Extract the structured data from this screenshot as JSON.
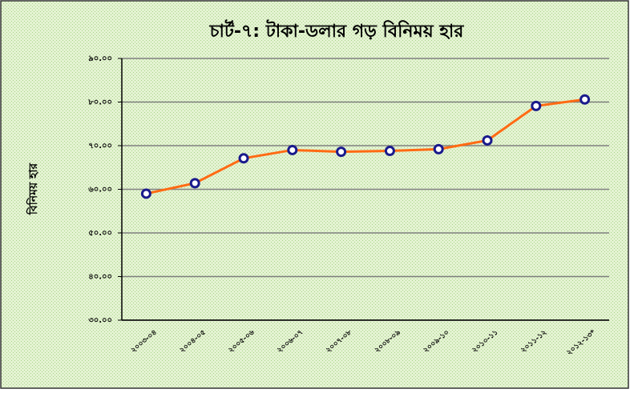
{
  "chart_data": {
    "type": "line",
    "title": "চার্ট-৭: টাকা-ডলার গড় বিনিময় হার",
    "y_label": "বিনিময় হার",
    "categories": [
      "২০০৩-০৪",
      "২০০৪-০৫",
      "২০০৫-০৬",
      "২০০৬-০৭",
      "২০০৭-০৮",
      "২০০৮-০৯",
      "২০০৯-১০",
      "২০১০-১১",
      "২০১১-১২",
      "২০১২-১৩*"
    ],
    "series": [
      {
        "name": "বিনিময় হার",
        "color": "#ff6a13",
        "marker_color": "#1a1a8c",
        "values": [
          59.0,
          61.4,
          67.1,
          69.0,
          68.6,
          68.8,
          69.2,
          71.2,
          79.1,
          80.6
        ]
      }
    ],
    "ylim": [
      30,
      90
    ],
    "yticks": [
      {
        "value": 30,
        "label": "৩০.০০"
      },
      {
        "value": 40,
        "label": "৪০.০০"
      },
      {
        "value": 50,
        "label": "৫০.০০"
      },
      {
        "value": 60,
        "label": "৬০.০০"
      },
      {
        "value": 70,
        "label": "৭০.০০"
      },
      {
        "value": 80,
        "label": "৮০.০০"
      },
      {
        "value": 90,
        "label": "৯০.০০"
      }
    ],
    "grid": true
  }
}
